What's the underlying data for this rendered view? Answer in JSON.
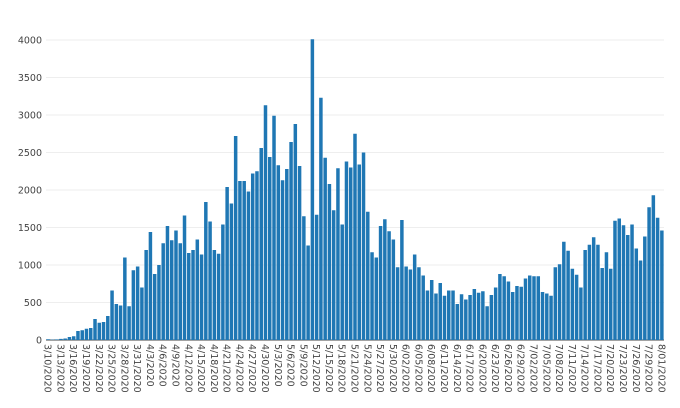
{
  "chart_data": {
    "type": "bar",
    "title": "",
    "xlabel": "",
    "ylabel": "",
    "ylim": [
      0,
      4000
    ],
    "y_ticks": [
      0,
      500,
      1000,
      1500,
      2000,
      2500,
      3000,
      3500,
      4000
    ],
    "y_tick_labels": [
      "0",
      "500",
      "1000",
      "1500",
      "2000",
      "2500",
      "3000",
      "3500",
      "4000"
    ],
    "x_tick_labels": [
      "3/10/2020",
      "3/13/2020",
      "3/16/2020",
      "3/19/2020",
      "3/22/2020",
      "3/25/2020",
      "3/28/2020",
      "3/31/2020",
      "4/3/2020",
      "4/6/2020",
      "4/9/2020",
      "4/12/2020",
      "4/15/2020",
      "4/18/2020",
      "4/21/2020",
      "4/24/2020",
      "4/27/2020",
      "4/30/2020",
      "5/3/2020",
      "5/6/2020",
      "5/9/2020",
      "5/12/2020",
      "5/15/2020",
      "5/18/2020",
      "5/21/2020",
      "5/24/2020",
      "5/27/2020",
      "5/30/2020",
      "6/02/2020",
      "6/05/2020",
      "6/08/2020",
      "6/11/2020",
      "6/14/2020",
      "6/17/2020",
      "6/20/2020",
      "6/23/2020",
      "6/26/2020",
      "6/29/2020",
      "7/02/2020",
      "7/05/2020",
      "7/08/2020",
      "7/11/2020",
      "7/14/2020",
      "7/17/2020",
      "7/20/2020",
      "7/23/2020",
      "7/26/2020",
      "7/29/2020",
      "8/01/2020"
    ],
    "bar_color": "#1f77b4",
    "grid": true,
    "values": [
      10,
      5,
      8,
      15,
      20,
      40,
      50,
      120,
      130,
      150,
      160,
      280,
      230,
      240,
      320,
      660,
      480,
      460,
      1100,
      450,
      930,
      980,
      700,
      1200,
      1440,
      880,
      1000,
      1290,
      1520,
      1330,
      1460,
      1290,
      1660,
      1160,
      1200,
      1340,
      1140,
      1840,
      1580,
      1200,
      1150,
      1540,
      2040,
      1820,
      2720,
      2120,
      2120,
      1980,
      2220,
      2250,
      2560,
      3130,
      2440,
      2990,
      2330,
      2130,
      2280,
      2640,
      2880,
      2320,
      1650,
      1260,
      4010,
      1670,
      3230,
      2430,
      2080,
      1730,
      2290,
      1540,
      2380,
      2300,
      2750,
      2340,
      2500,
      1710,
      1170,
      1100,
      1520,
      1610,
      1450,
      1340,
      970,
      1600,
      980,
      940,
      1140,
      970,
      860,
      660,
      800,
      620,
      760,
      590,
      660,
      660,
      480,
      610,
      540,
      600,
      680,
      630,
      650,
      450,
      600,
      700,
      880,
      850,
      780,
      640,
      720,
      710,
      820,
      860,
      850,
      850,
      640,
      620,
      590,
      970,
      1010,
      1310,
      1190,
      950,
      870,
      700,
      1200,
      1270,
      1370,
      1270,
      960,
      1170,
      950,
      1590,
      1620,
      1530,
      1400,
      1540,
      1220,
      1060,
      1380,
      1770,
      1930,
      1630,
      1460
    ]
  }
}
